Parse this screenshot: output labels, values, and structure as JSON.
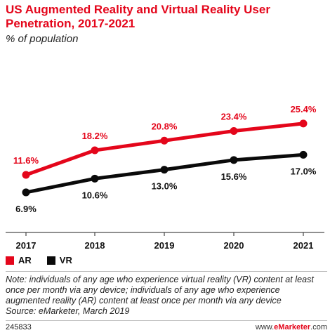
{
  "header": {
    "title": "US Augmented Reality and Virtual Reality User Penetration, 2017-2021",
    "subtitle": "% of population"
  },
  "colors": {
    "ar": "#e4061b",
    "vr": "#0a0a0a",
    "title": "#e4061b"
  },
  "chart_data": {
    "type": "line",
    "title": "US Augmented Reality and Virtual Reality User Penetration, 2017-2021",
    "subtitle": "% of population",
    "x": [
      "2017",
      "2018",
      "2019",
      "2020",
      "2021"
    ],
    "series": [
      {
        "name": "AR",
        "color": "#e4061b",
        "values": [
          11.6,
          18.2,
          20.8,
          23.4,
          25.4
        ],
        "labels": [
          "11.6%",
          "18.2%",
          "20.8%",
          "23.4%",
          "25.4%"
        ]
      },
      {
        "name": "VR",
        "color": "#0a0a0a",
        "values": [
          6.9,
          10.6,
          13.0,
          15.6,
          17.0
        ],
        "labels": [
          "6.9%",
          "10.6%",
          "13.0%",
          "15.6%",
          "17.0%"
        ]
      }
    ],
    "grid": false,
    "legend": "bottom-left"
  },
  "legend": {
    "ar": "AR",
    "vr": "VR"
  },
  "note": "Note: individuals of any age who experience virtual reality (VR) content at least once per month via any device; individuals of any age who experience augmented reality (AR) content at least once per month via any device",
  "source": "Source: eMarketer, March 2019",
  "footer": {
    "id": "245833",
    "brand_prefix": "www.",
    "brand_name": "eMarketer",
    "brand_suffix": ".com"
  }
}
